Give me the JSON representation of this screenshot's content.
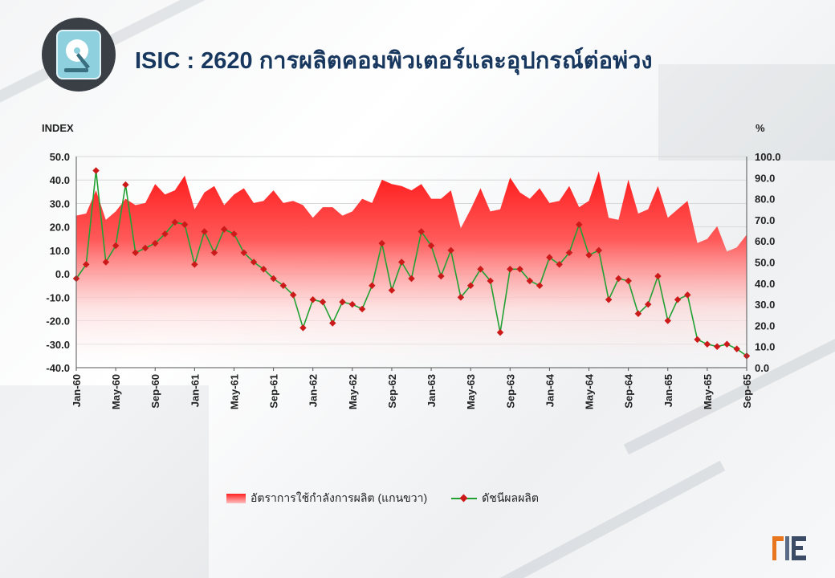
{
  "header": {
    "title": "ISIC : 2620 การผลิตคอมพิวเตอร์และอุปกรณ์ต่อพ่วง",
    "icon": "hard-disk-icon"
  },
  "units": {
    "left": "INDEX",
    "right": "%"
  },
  "legend": {
    "area_label": "อัตราการใช้กำลังการผลิต (แกนขวา)",
    "line_label": "ดัชนีผลผลิต"
  },
  "colors": {
    "area_top": "#ff1a1a",
    "area_bottom": "#ffffff",
    "line": "#22a033",
    "marker": "#cc1a1a",
    "title": "#17375e"
  },
  "chart_data": {
    "type": "line",
    "x_tick_labels": [
      "Jan-60",
      "May-60",
      "Sep-60",
      "Jan-61",
      "May-61",
      "Sep-61",
      "Jan-62",
      "May-62",
      "Sep-62",
      "Jan-63",
      "May-63",
      "Sep-63",
      "Jan-64",
      "May-64",
      "Sep-64",
      "Jan-65",
      "May-65",
      "Sep-65"
    ],
    "y_left": {
      "label": "INDEX",
      "lim": [
        -40,
        50
      ],
      "ticks": [
        "50.0",
        "40.0",
        "30.0",
        "20.0",
        "10.0",
        "0.0",
        "-10.0",
        "-20.0",
        "-30.0",
        "-40.0"
      ]
    },
    "y_right": {
      "label": "%",
      "lim": [
        0,
        100
      ],
      "ticks": [
        "100.0",
        "90.0",
        "80.0",
        "70.0",
        "60.0",
        "50.0",
        "40.0",
        "30.0",
        "20.0",
        "10.0",
        "0.0"
      ]
    },
    "grid": true,
    "legend_position": "bottom",
    "series": [
      {
        "name": "อัตราการใช้กำลังการผลิต (แกนขวา)",
        "type": "area",
        "axis": "right",
        "values": [
          72,
          73,
          84,
          70,
          74,
          80,
          77,
          78,
          87,
          82,
          84,
          91,
          75,
          83,
          86,
          77,
          82,
          85,
          78,
          79,
          84,
          78,
          79,
          77,
          71,
          76,
          76,
          72,
          74,
          80,
          78,
          89,
          87,
          86,
          84,
          87,
          80,
          80,
          84,
          66,
          75,
          85,
          74,
          75,
          90,
          83,
          80,
          85,
          78,
          79,
          86,
          76,
          79,
          93,
          71,
          70,
          89,
          73,
          75,
          86,
          71,
          75,
          79,
          59,
          61,
          67,
          55,
          57,
          63
        ]
      },
      {
        "name": "ดัชนีผลผลิต",
        "type": "line",
        "axis": "left",
        "values": [
          -2,
          4,
          44,
          5,
          12,
          38,
          9,
          11,
          13,
          17,
          22,
          21,
          4,
          18,
          9,
          19,
          17,
          9,
          5,
          2,
          -2,
          -5,
          -9,
          -23,
          -11,
          -12,
          -21,
          -12,
          -13,
          -15,
          -5,
          13,
          -7,
          5,
          -2,
          18,
          12,
          -1,
          10,
          -10,
          -5,
          2,
          -3,
          -25,
          2,
          2,
          -3,
          -5,
          7,
          4,
          9,
          21,
          8,
          10,
          -11,
          -2,
          -3,
          -17,
          -13,
          -1,
          -20,
          -11,
          -9,
          -28,
          -30,
          -31,
          -30,
          -32,
          -35
        ]
      }
    ]
  }
}
